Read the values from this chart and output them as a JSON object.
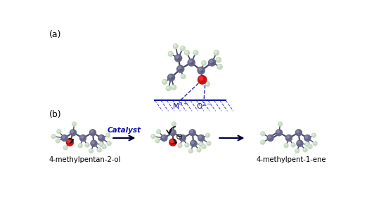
{
  "label_a": "(a)",
  "label_b": "(b)",
  "catalyst_label": "Catalyst",
  "mol1_label": "4-methylpentan-2-ol",
  "mol3_label": "4-methylpent-1-ene",
  "bg_color": "#ffffff",
  "bond_color": "#444466",
  "carbon_color": "#666688",
  "carbon_dark": "#444455",
  "hydrogen_color": "#c8d8c0",
  "hydrogen_light": "#ddeedd",
  "oxygen_color": "#cc1111",
  "oxygen_light": "#ff4444",
  "surface_color": "#1111aa",
  "arrow_color": "#111122",
  "blue_text_color": "#1111aa",
  "text_color": "#000000"
}
